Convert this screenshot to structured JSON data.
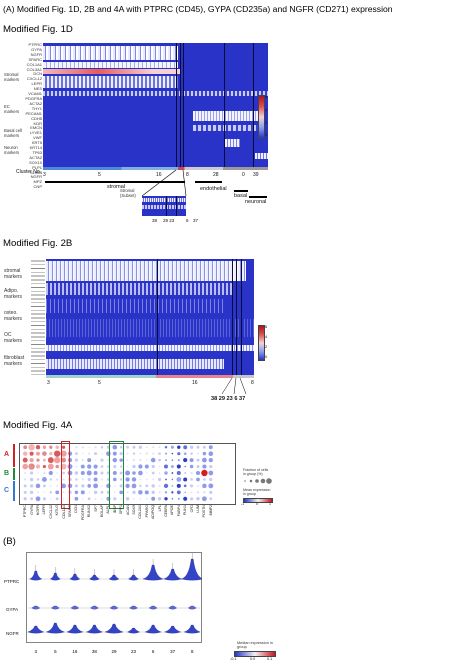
{
  "header": "(A) Modified Fig. 1D, 2B and 4A with PTPRC (CD45), GYPA (CD235a) and NGFR (CD271) expression",
  "fig1d": {
    "title": "Modified Fig. 1D",
    "genes": [
      "PTPRC",
      "GYPA",
      "NGFR",
      "SPARC",
      "COL1A1",
      "COL3A1",
      "DCN",
      "CXCL12",
      "LEPR",
      "NES",
      "VCAM1",
      "PDGFRA",
      "ACTA2",
      "THY1",
      "PECAM1",
      "CDH5",
      "KDR",
      "EMCN",
      "LYVE1",
      "VWF",
      "KRT5",
      "KRT14",
      "TP63",
      "ACTA2",
      "SOX10",
      "PLP1",
      "S100B",
      "NGFR",
      "MPZ",
      "CNP"
    ],
    "group_labels": [
      "Stromal markers",
      "EC markers",
      "Basal cell markers",
      "Neuron markers"
    ],
    "cluster_label": "Cluster No.",
    "cluster_nums": [
      "3",
      "5",
      "16",
      "8",
      "28",
      "0",
      "39"
    ],
    "bottom_labels": [
      "stromal",
      "endothelial",
      "basal",
      "neuronal"
    ],
    "inset_label": "Stromal (Subset)",
    "inset_nums": [
      "38",
      "29 23",
      "6",
      "37"
    ],
    "colorbar_ticks": [
      "6",
      "4",
      "2",
      "0"
    ]
  },
  "fig2b": {
    "title": "Modified Fig. 2B",
    "group_labels": [
      "stromal markers",
      "Adipo. markers",
      "osteo. markers",
      "OC markers",
      "fibroblast markers"
    ],
    "cluster_nums": [
      "3",
      "5",
      "16",
      "8"
    ],
    "bottom_nums": "38 29 23 6 37",
    "colorbar_ticks": [
      "6",
      "4",
      "2",
      "0"
    ]
  },
  "fig4a": {
    "title": "Modified Fig. 4A",
    "row_letters": [
      "A",
      "B",
      "C"
    ],
    "genes": [
      "PTPRC",
      "GYPA",
      "NGFR",
      "LEPR",
      "CXCL12",
      "KITLG",
      "COL1A1",
      "SPARC",
      "DCN",
      "PDGFRA",
      "RUNX2",
      "SP7",
      "BGLAP",
      "ALPL",
      "IBSP",
      "SPP1",
      "ACAN",
      "SOX9",
      "COL2A1",
      "PPARG",
      "ADIPOQ",
      "LPL",
      "CEBPA",
      "APOE",
      "FABP4",
      "PLIN1",
      "CFD",
      "LUM",
      "POSTN",
      "MMP2"
    ],
    "legend_size_title": "Fraction of cells in group (%)",
    "legend_size_ticks": [
      "20",
      "40",
      "60",
      "80",
      "100"
    ],
    "legend_color_title": "Mean expression in group",
    "legend_color_ticks": [
      "-1",
      "0",
      "1"
    ]
  },
  "panel_b": {
    "title": "(B)",
    "rows": [
      "PTPRC",
      "GYPA",
      "NGFR"
    ],
    "x_labels": [
      "3",
      "5",
      "16",
      "38",
      "29",
      "23",
      "6",
      "37",
      "8"
    ],
    "legend_title": "Median expression in group",
    "legend_ticks": [
      "-0.1",
      "0.0",
      "0.1"
    ]
  },
  "colors": {
    "heat_blue": "#2a33c8",
    "heat_red": "#d6262e",
    "highlight_red": "#d42020",
    "highlight_green": "#1f8a3a"
  }
}
